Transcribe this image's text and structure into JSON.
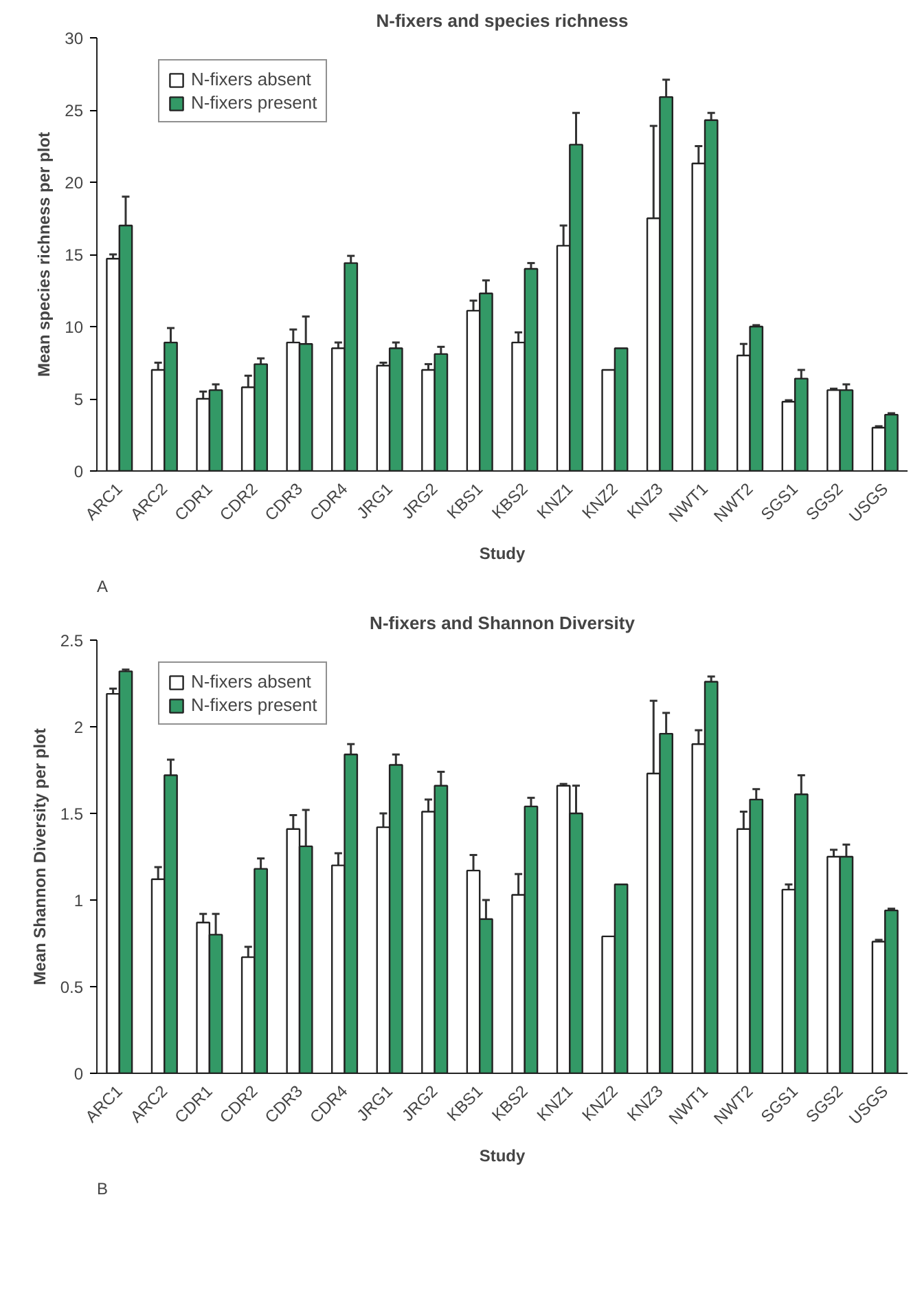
{
  "chart_data": [
    {
      "type": "bar",
      "title": "N-fixers and species richness",
      "xlabel": "Study",
      "ylabel": "Mean species richness per plot",
      "categories": [
        "ARC1",
        "ARC2",
        "CDR1",
        "CDR2",
        "CDR3",
        "CDR4",
        "JRG1",
        "JRG2",
        "KBS1",
        "KBS2",
        "KNZ1",
        "KNZ2",
        "KNZ3",
        "NWT1",
        "NWT2",
        "SGS1",
        "SGS2",
        "USGS"
      ],
      "series": [
        {
          "name": "N-fixers absent",
          "color": "#ffffff",
          "values": [
            14.7,
            7.0,
            5.0,
            5.8,
            8.9,
            8.5,
            7.3,
            7.0,
            11.1,
            8.9,
            15.6,
            7.0,
            17.5,
            21.3,
            8.0,
            4.8,
            5.6,
            3.0
          ],
          "errors": [
            [
              14.7,
              15.0
            ],
            [
              7.0,
              7.5
            ],
            [
              5.0,
              5.5
            ],
            [
              5.8,
              6.6
            ],
            [
              8.9,
              9.8
            ],
            [
              8.5,
              8.9
            ],
            [
              7.3,
              7.5
            ],
            [
              7.0,
              7.4
            ],
            [
              11.1,
              11.8
            ],
            [
              8.9,
              9.6
            ],
            [
              15.6,
              17.0
            ],
            null,
            [
              17.5,
              23.9
            ],
            [
              21.3,
              22.5
            ],
            [
              8.0,
              8.8
            ],
            [
              4.8,
              4.9
            ],
            [
              5.6,
              5.7
            ],
            [
              3.0,
              3.1
            ]
          ]
        },
        {
          "name": "N-fixers present",
          "color": "#339966",
          "values": [
            17.0,
            8.9,
            5.6,
            7.4,
            8.8,
            14.4,
            8.5,
            8.1,
            12.3,
            14.0,
            22.6,
            8.5,
            25.9,
            24.3,
            10.0,
            6.4,
            5.6,
            3.9
          ],
          "errors": [
            [
              17.0,
              19.0
            ],
            [
              8.9,
              9.9
            ],
            [
              5.6,
              6.0
            ],
            [
              7.4,
              7.8
            ],
            [
              8.8,
              10.7
            ],
            [
              14.4,
              14.9
            ],
            [
              8.5,
              8.9
            ],
            [
              8.1,
              8.6
            ],
            [
              12.3,
              13.2
            ],
            [
              14.0,
              14.4
            ],
            [
              22.6,
              24.8
            ],
            null,
            [
              25.9,
              27.1
            ],
            [
              24.3,
              24.8
            ],
            [
              10.0,
              10.1
            ],
            [
              6.4,
              7.0
            ],
            [
              5.6,
              6.0
            ],
            [
              3.9,
              4.0
            ]
          ]
        }
      ],
      "ylim": [
        0,
        30
      ],
      "yticks": [
        0,
        5,
        10,
        15,
        20,
        25,
        30
      ],
      "grid": false,
      "legend": "top left",
      "annotations": [
        "A"
      ]
    },
    {
      "type": "bar",
      "title": "N-fixers and Shannon Diversity",
      "xlabel": "Study",
      "ylabel": "Mean Shannon Diversity per plot",
      "categories": [
        "ARC1",
        "ARC2",
        "CDR1",
        "CDR2",
        "CDR3",
        "CDR4",
        "JRG1",
        "JRG2",
        "KBS1",
        "KBS2",
        "KNZ1",
        "KNZ2",
        "KNZ3",
        "NWT1",
        "NWT2",
        "SGS1",
        "SGS2",
        "USGS"
      ],
      "series": [
        {
          "name": "N-fixers absent",
          "color": "#ffffff",
          "values": [
            2.19,
            1.12,
            0.87,
            0.67,
            1.41,
            1.2,
            1.42,
            1.51,
            1.17,
            1.03,
            1.66,
            0.79,
            1.73,
            1.9,
            1.41,
            1.06,
            1.25,
            0.76
          ],
          "errors": [
            [
              2.19,
              2.22
            ],
            [
              1.12,
              1.19
            ],
            [
              0.87,
              0.92
            ],
            [
              0.67,
              0.73
            ],
            [
              1.41,
              1.49
            ],
            [
              1.2,
              1.27
            ],
            [
              1.42,
              1.5
            ],
            [
              1.51,
              1.58
            ],
            [
              1.17,
              1.26
            ],
            [
              1.03,
              1.15
            ],
            [
              1.66,
              1.67
            ],
            null,
            [
              1.73,
              2.15
            ],
            [
              1.9,
              1.98
            ],
            [
              1.41,
              1.51
            ],
            [
              1.06,
              1.09
            ],
            [
              1.25,
              1.29
            ],
            [
              0.76,
              0.77
            ]
          ]
        },
        {
          "name": "N-fixers present",
          "color": "#339966",
          "values": [
            2.32,
            1.72,
            0.8,
            1.18,
            1.31,
            1.84,
            1.78,
            1.66,
            0.89,
            1.54,
            1.5,
            1.09,
            1.96,
            2.26,
            1.58,
            1.61,
            1.25,
            0.94
          ],
          "errors": [
            [
              2.32,
              2.33
            ],
            [
              1.72,
              1.81
            ],
            [
              0.8,
              0.92
            ],
            [
              1.18,
              1.24
            ],
            [
              1.31,
              1.52
            ],
            [
              1.84,
              1.9
            ],
            [
              1.78,
              1.84
            ],
            [
              1.66,
              1.74
            ],
            [
              0.89,
              1.0
            ],
            [
              1.54,
              1.59
            ],
            [
              1.5,
              1.66
            ],
            null,
            [
              1.96,
              2.08
            ],
            [
              2.26,
              2.29
            ],
            [
              1.58,
              1.64
            ],
            [
              1.61,
              1.72
            ],
            [
              1.25,
              1.32
            ],
            [
              0.94,
              0.95
            ]
          ]
        }
      ],
      "ylim": [
        0,
        2.5
      ],
      "yticks": [
        0,
        0.5,
        1,
        1.5,
        2,
        2.5
      ],
      "grid": false,
      "legend": "top left",
      "annotations": [
        "B"
      ]
    }
  ]
}
